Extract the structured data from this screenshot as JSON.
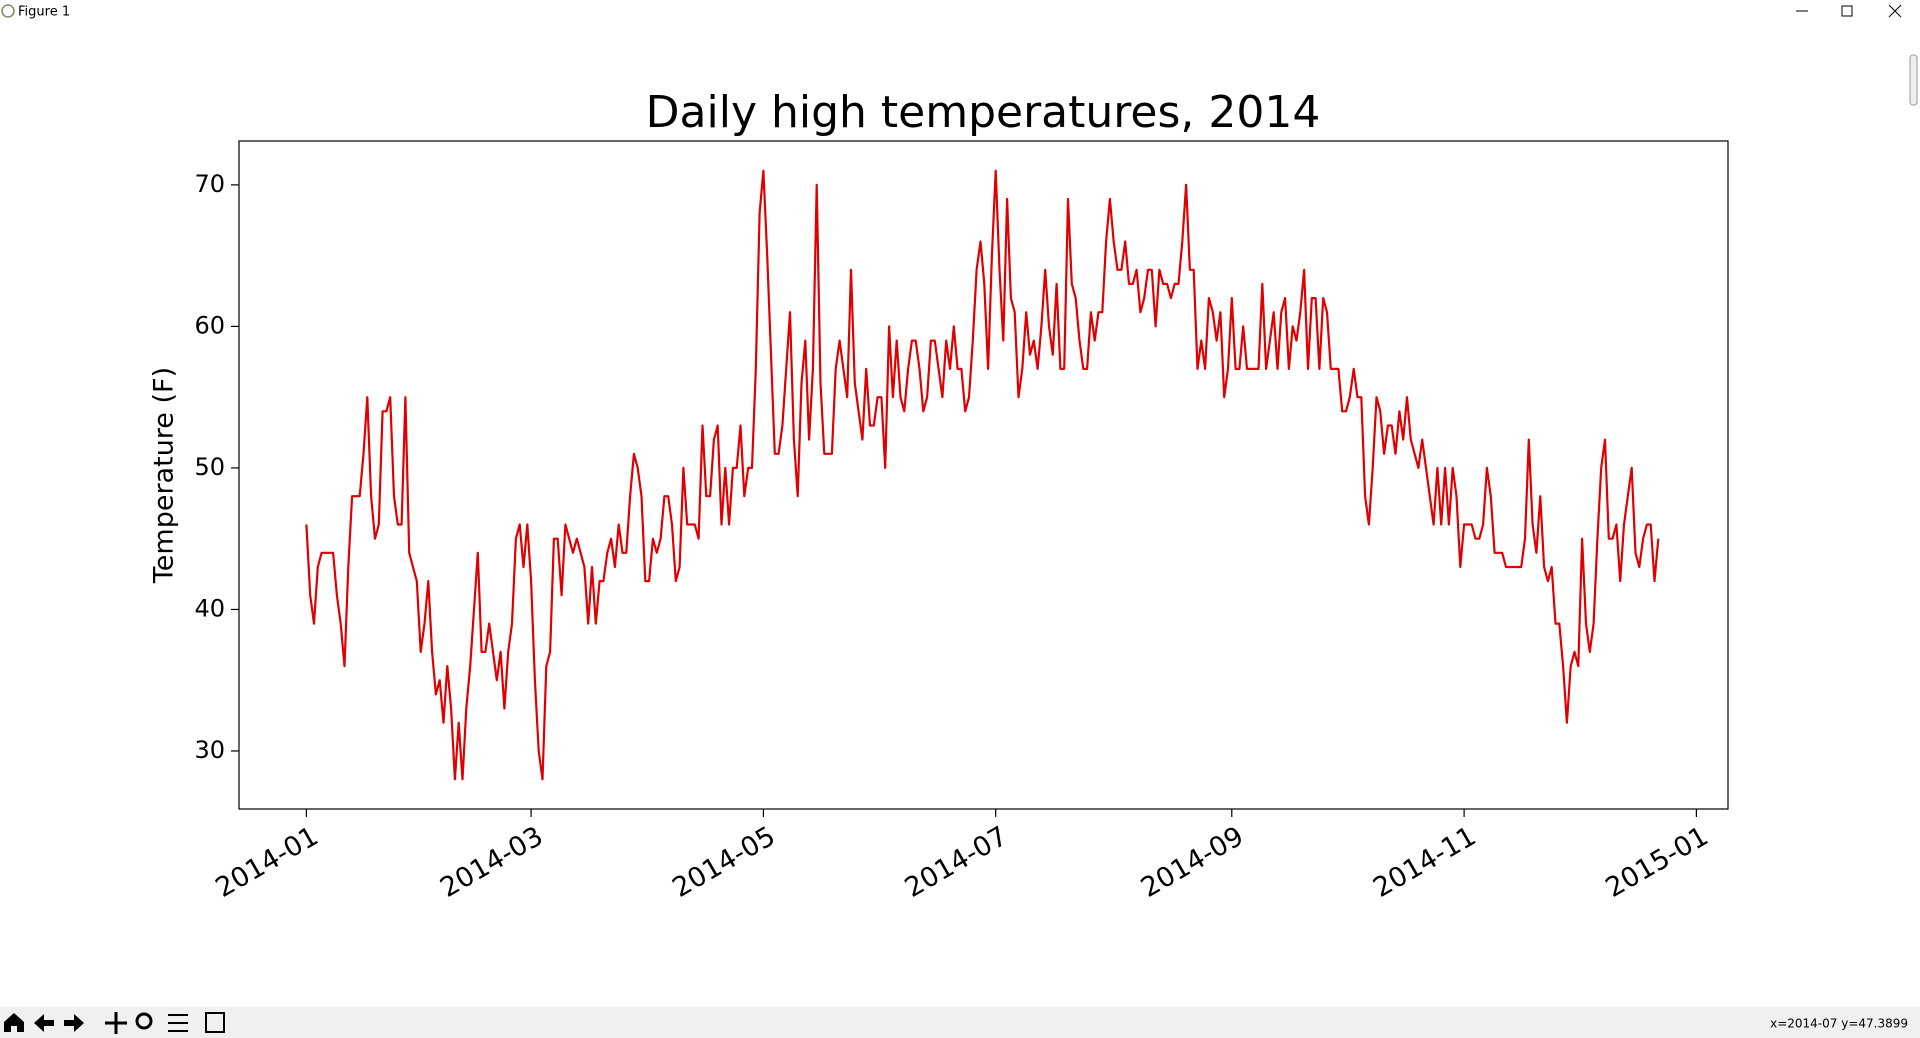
{
  "window": {
    "title": "Figure 1",
    "status": "x=2014-07 y=47.3899"
  },
  "chart_data": {
    "type": "line",
    "title": "Daily high temperatures, 2014",
    "y_label": "Temperature (F)",
    "color": "#e00000",
    "values": [
      46,
      41,
      39,
      43,
      44,
      44,
      44,
      44,
      41,
      39,
      36,
      43,
      48,
      48,
      48,
      51,
      55,
      48,
      45,
      46,
      54,
      54,
      55,
      48,
      46,
      46,
      55,
      44,
      43,
      42,
      37,
      39,
      42,
      37,
      34,
      35,
      32,
      36,
      33,
      28,
      32,
      28,
      33,
      36,
      40,
      44,
      37,
      37,
      39,
      37,
      35,
      37,
      33,
      37,
      39,
      45,
      46,
      43,
      46,
      42,
      35,
      30,
      28,
      36,
      37,
      45,
      45,
      41,
      46,
      45,
      44,
      45,
      44,
      43,
      39,
      43,
      39,
      42,
      42,
      44,
      45,
      43,
      46,
      44,
      44,
      48,
      51,
      50,
      48,
      42,
      42,
      45,
      44,
      45,
      48,
      48,
      46,
      42,
      43,
      50,
      46,
      46,
      46,
      45,
      53,
      48,
      48,
      52,
      53,
      46,
      50,
      46,
      50,
      50,
      53,
      48,
      50,
      50,
      57,
      68,
      71,
      65,
      58,
      51,
      51,
      53,
      57,
      61,
      52,
      48,
      56,
      59,
      52,
      57,
      70,
      56,
      51,
      51,
      51,
      57,
      59,
      57,
      55,
      64,
      56,
      54,
      52,
      57,
      53,
      53,
      55,
      55,
      50,
      60,
      55,
      59,
      55,
      54,
      57,
      59,
      59,
      57,
      54,
      55,
      59,
      59,
      57,
      55,
      59,
      57,
      60,
      57,
      57,
      54,
      55,
      59,
      64,
      66,
      63,
      57,
      65,
      71,
      64,
      59,
      69,
      62,
      61,
      55,
      57,
      61,
      58,
      59,
      57,
      60,
      64,
      60,
      58,
      63,
      57,
      57,
      69,
      63,
      62,
      59,
      57,
      57,
      61,
      59,
      61,
      61,
      66,
      69,
      66,
      64,
      64,
      66,
      63,
      63,
      64,
      61,
      62,
      64,
      64,
      60,
      64,
      63,
      63,
      62,
      63,
      63,
      66,
      70,
      64,
      64,
      57,
      59,
      57,
      62,
      61,
      59,
      61,
      55,
      57,
      62,
      57,
      57,
      60,
      57,
      57,
      57,
      57,
      63,
      57,
      59,
      61,
      57,
      61,
      62,
      57,
      60,
      59,
      61,
      64,
      57,
      62,
      62,
      57,
      62,
      61,
      57,
      57,
      57,
      54,
      54,
      55,
      57,
      55,
      55,
      48,
      46,
      50,
      55,
      54,
      51,
      53,
      53,
      51,
      54,
      52,
      55,
      52,
      51,
      50,
      52,
      50,
      48,
      46,
      50,
      46,
      50,
      46,
      50,
      48,
      43,
      46,
      46,
      46,
      45,
      45,
      46,
      50,
      48,
      44,
      44,
      44,
      43,
      43,
      43,
      43,
      43,
      45,
      52,
      46,
      44,
      48,
      43,
      42,
      43,
      39,
      39,
      36,
      32,
      36,
      37,
      36,
      45,
      39,
      37,
      39,
      45,
      50,
      52,
      45,
      45,
      46,
      42,
      46,
      48,
      50,
      44,
      43,
      45,
      46,
      46,
      42,
      45
    ],
    "xlim": [
      -17.7,
      373.3
    ],
    "xticks": [
      {
        "value": 0,
        "label": "2014-01"
      },
      {
        "value": 59,
        "label": "2014-03"
      },
      {
        "value": 120,
        "label": "2014-05"
      },
      {
        "value": 181,
        "label": "2014-07"
      },
      {
        "value": 243,
        "label": "2014-09"
      },
      {
        "value": 304,
        "label": "2014-11"
      },
      {
        "value": 365,
        "label": "2015-01"
      }
    ],
    "ylim": [
      25.9,
      73.1
    ],
    "yticks": [
      30,
      40,
      50,
      60,
      70
    ]
  }
}
